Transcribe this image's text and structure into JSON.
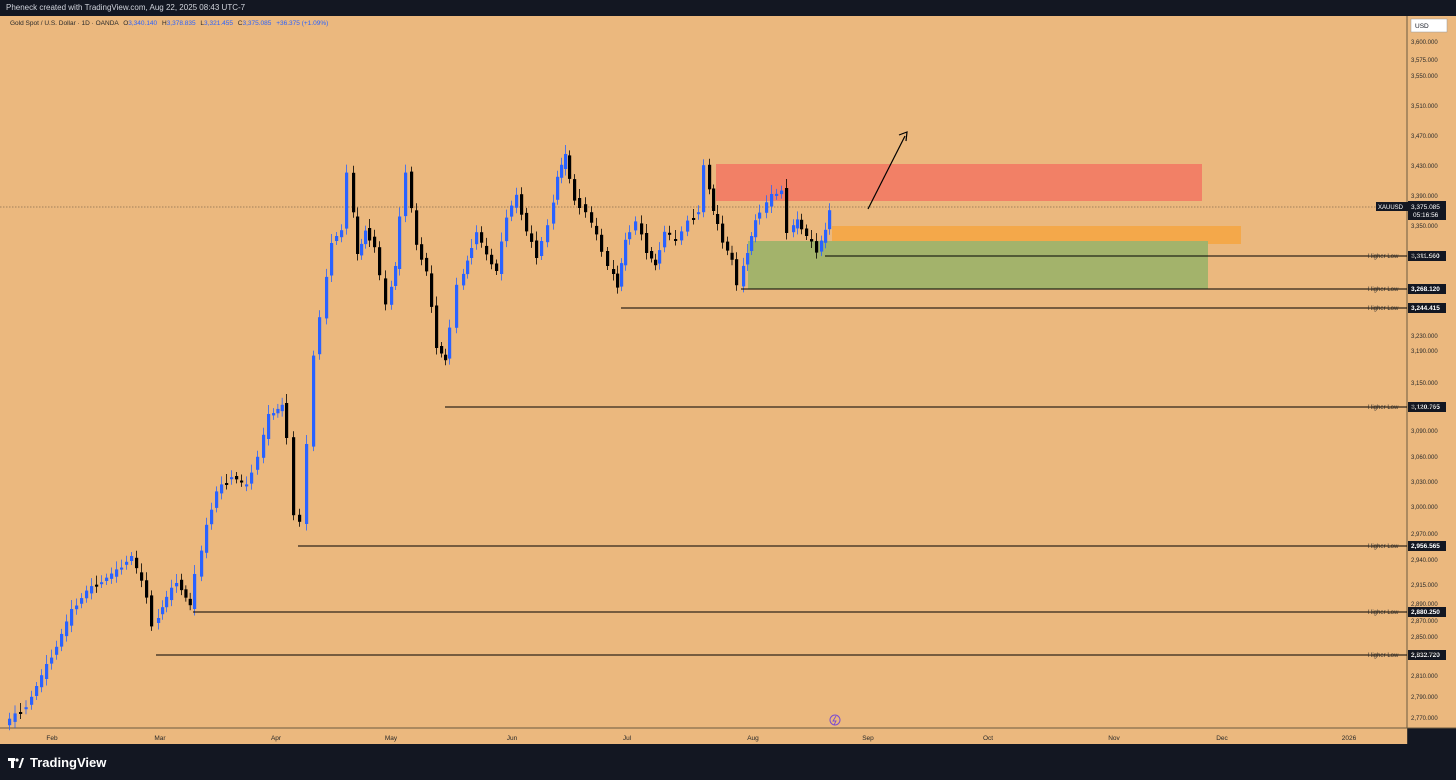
{
  "header": {
    "attribution": "Pheneck created with TradingView.com, Aug 22, 2025 08:43 UTC-7"
  },
  "legend": {
    "symbol": "Gold Spot / U.S. Dollar · 1D · OANDA",
    "o_label": "O",
    "o": "3,340.140",
    "h_label": "H",
    "h": "3,378.835",
    "l_label": "L",
    "l": "3,321.455",
    "c_label": "C",
    "c": "3,375.085",
    "change": "+36.375 (+1.09%)"
  },
  "price_scale": {
    "currency": "USD",
    "ticks": [
      "3,600.000",
      "3,575.000",
      "3,550.000",
      "3,510.000",
      "3,470.000",
      "3,430.000",
      "3,390.000",
      "3,350.000",
      "3,310.000",
      "3,230.000",
      "3,190.000",
      "3,150.000",
      "3,120.000",
      "3,090.000",
      "3,060.000",
      "3,030.000",
      "3,000.000",
      "2,970.000",
      "2,940.000",
      "2,915.000",
      "2,890.000",
      "2,870.000",
      "2,850.000",
      "2,830.000",
      "2,810.000",
      "2,790.000",
      "2,770.000"
    ],
    "current_symbol": "XAUUSD",
    "current_price": "3,375.085",
    "countdown": "05:16:56"
  },
  "time_axis": {
    "ticks": [
      "Feb",
      "Mar",
      "Apr",
      "May",
      "Jun",
      "Jul",
      "Aug",
      "Sep",
      "Oct",
      "Nov",
      "Dec",
      "2026"
    ]
  },
  "drawings": {
    "label_text": "Higher Low",
    "levels": [
      "3,311.560",
      "3,268.120",
      "3,244.415",
      "3,120.765",
      "2,956.565",
      "2,880.250",
      "2,832.720"
    ],
    "zones": [
      {
        "name": "supply-zone",
        "color": "#f28066"
      },
      {
        "name": "entry-zone",
        "color": "#f4a84a"
      },
      {
        "name": "demand-zone",
        "color": "#a3b36b"
      }
    ]
  },
  "colors": {
    "background": "#ebb87e",
    "bullish": "#2962ff",
    "bearish": "#000000",
    "axis_text": "#2a2a2a"
  },
  "footer": {
    "brand": "TradingView"
  }
}
